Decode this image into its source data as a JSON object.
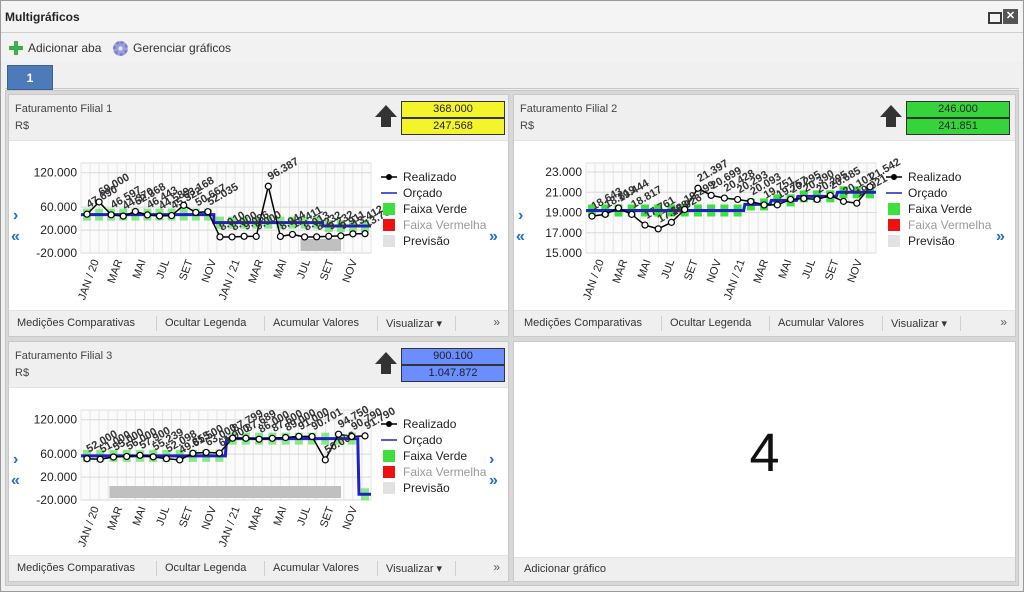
{
  "window": {
    "title": "Multigráficos"
  },
  "toolbar": {
    "add_tab": "Adicionar aba",
    "manage_charts": "Gerenciar gráficos"
  },
  "tabs": [
    {
      "label": "1"
    }
  ],
  "colors": {
    "accent": "#4d7ab8",
    "yellow": "#f4f42a",
    "green": "#35d43a",
    "blue": "#6a8dff",
    "realizado": "#000000",
    "orcado": "#2020c8",
    "faixa_verde": "#3ee03e",
    "faixa_vermelha": "#ee1111",
    "previsao": "#c0c0c0"
  },
  "footer": {
    "compare": "Medições Comparativas",
    "hide_legend": "Ocultar Legenda",
    "accumulate": "Acumular Valores",
    "view": "Visualizar ▾",
    "more": "»"
  },
  "legend": {
    "realizado": "Realizado",
    "orcado": "Orçado",
    "faixa_verde": "Faixa Verde",
    "faixa_vermelha": "Faixa Vermelha",
    "previsao": "Previsão"
  },
  "months": [
    "JAN / 20",
    "MAR",
    "MAI",
    "JUL",
    "SET",
    "NOV",
    "JAN / 21",
    "MAR",
    "MAI",
    "JUL",
    "SET",
    "NOV"
  ],
  "panels": [
    {
      "title": "Faturamento Filial 1",
      "unit": "R$",
      "box_top": "368.000",
      "box_bottom": "247.568",
      "box_color": "#f4f42a",
      "chart_data": {
        "type": "line",
        "y_ticks": [
          "120.000",
          "60.000",
          "20.000",
          "-20.000"
        ],
        "ylim": [
          -20000,
          130000
        ],
        "realizado": [
          47690,
          69000,
          46597,
          44370,
          52368,
          46443,
          44589,
          45322,
          63168,
          50667,
          52035,
          8010,
          8000,
          9086,
          9000,
          96387,
          8944,
          12411,
          8013,
          8232,
          9232,
          9911,
          13412,
          13760
        ],
        "orcado": [
          47000,
          47000,
          47000,
          47000,
          47000,
          47000,
          47000,
          47000,
          47000,
          47000,
          47000,
          33000,
          33000,
          33000,
          33000,
          33000,
          33000,
          33000,
          33000,
          33000,
          27000,
          27000,
          27000,
          27000
        ],
        "labels": [
          "47.690",
          "69.000",
          "46.597",
          "44.370",
          "52.368",
          "46.443",
          "44.589",
          "45.322",
          "63.168",
          "50.667",
          "52.035",
          "8.010",
          "8.000",
          "9.086",
          "9.000",
          "96.387",
          "8.944",
          "12.411",
          "8.013",
          "8.232",
          "9.232",
          "9.911",
          "13.412",
          "13.760"
        ],
        "previsao_start": 18
      }
    },
    {
      "title": "Faturamento Filial 2",
      "unit": "R$",
      "box_top": "246.000",
      "box_bottom": "241.851",
      "box_color": "#35d43a",
      "chart_data": {
        "type": "line",
        "y_ticks": [
          "23.000",
          "21.000",
          "19.000",
          "17.000",
          "15.000"
        ],
        "ylim": [
          15000,
          23500
        ],
        "realizado": [
          18643,
          18819,
          19444,
          18817,
          17761,
          17388,
          18026,
          19299,
          21397,
          20699,
          20428,
          20293,
          20093,
          19751,
          19757,
          20295,
          20390,
          20295,
          20685,
          20101,
          19921,
          21542
        ],
        "orcado": [
          19200,
          19200,
          19200,
          19200,
          19200,
          19200,
          19200,
          19200,
          19200,
          19200,
          19200,
          19200,
          19800,
          19800,
          20200,
          20200,
          20600,
          20600,
          20600,
          21000,
          21000,
          21000
        ],
        "labels": [
          "18.643",
          "18.819",
          "19.444",
          "18.817",
          "17.761",
          "17.388",
          "18.026",
          "19.299",
          "21.397",
          "20.699",
          "20.428",
          "20.293",
          "20.093",
          "19.751",
          "19.757",
          "20.295",
          "20.390",
          "20.295",
          "20.685",
          "20.101",
          "19.921",
          "21.542"
        ]
      }
    },
    {
      "title": "Faturamento Filial 3",
      "unit": "R$",
      "box_top": "900.100",
      "box_bottom": "1.047.872",
      "box_color": "#6a8dff",
      "chart_data": {
        "type": "line",
        "y_ticks": [
          "120.000",
          "60.000",
          "20.000",
          "-20.000"
        ],
        "ylim": [
          -20000,
          130000
        ],
        "realizado": [
          52000,
          51000,
          55000,
          56000,
          57900,
          55239,
          52098,
          49855,
          61500,
          63000,
          61900,
          87799,
          87689,
          86000,
          87600,
          89000,
          91000,
          90701,
          50000,
          94750,
          90790,
          91790
        ],
        "orcado": [
          57000,
          57000,
          57000,
          57000,
          57000,
          57000,
          57000,
          57000,
          57000,
          57000,
          57000,
          87000,
          87000,
          87000,
          87000,
          87000,
          87000,
          87000,
          87000,
          87000,
          87000,
          -10000
        ],
        "labels": [
          "52.000",
          "51.000",
          "55.000",
          "56.000",
          "57.900",
          "55.239",
          "52.098",
          "49.855",
          "61.500",
          "63.000",
          "61.900",
          "87.799",
          "87.689",
          "86.000",
          "87.600",
          "89.000",
          "91.000",
          "90.701",
          "50.000",
          "94.750",
          "90.790",
          "91.790"
        ],
        "previsao_start": 2
      }
    }
  ],
  "empty_panel": {
    "number": "4",
    "add_chart": "Adicionar gráfico"
  },
  "nav": {
    "next": "›",
    "prev": "‹",
    "first": "«",
    "last": "»"
  }
}
